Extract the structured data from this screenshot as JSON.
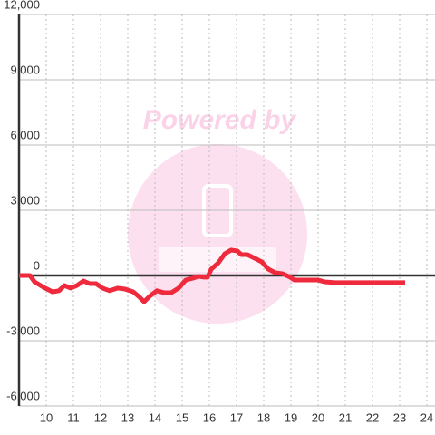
{
  "watermark": "Powered by",
  "chart_data": {
    "type": "line",
    "x": [
      9.0,
      9.4,
      9.57,
      9.9,
      10.23,
      10.47,
      10.67,
      10.9,
      11.13,
      11.37,
      11.6,
      11.83,
      12.07,
      12.33,
      12.63,
      12.9,
      13.2,
      13.4,
      13.6,
      13.8,
      14.07,
      14.33,
      14.6,
      14.87,
      15.13,
      15.4,
      15.6,
      15.8,
      15.93,
      16.07,
      16.33,
      16.57,
      16.8,
      17.03,
      17.17,
      17.4,
      17.67,
      17.93,
      18.17,
      18.43,
      18.7,
      18.97,
      19.13,
      19.4,
      20.0,
      20.23,
      20.63,
      23.2
    ],
    "series": [
      {
        "color": "#ee2a3c",
        "values": [
          0,
          0,
          -290,
          -540,
          -750,
          -700,
          -460,
          -580,
          -460,
          -250,
          -375,
          -375,
          -580,
          -700,
          -580,
          -625,
          -750,
          -960,
          -1210,
          -960,
          -700,
          -790,
          -790,
          -580,
          -210,
          -125,
          -40,
          -80,
          -80,
          290,
          580,
          1000,
          1170,
          1125,
          960,
          960,
          790,
          625,
          290,
          125,
          80,
          -80,
          -210,
          -210,
          -210,
          -290,
          -330,
          -330
        ]
      }
    ],
    "xlim": [
      9,
      24.3
    ],
    "xticks": [
      10,
      11,
      12,
      13,
      14,
      15,
      16,
      17,
      18,
      19,
      20,
      21,
      22,
      23,
      24
    ],
    "ylim": [
      -6000,
      12000
    ],
    "yticks": [
      {
        "value": -6000,
        "label": "-6,000"
      },
      {
        "value": -3000,
        "label": "-3,000"
      },
      0,
      {
        "value": 3000,
        "label": "3,000"
      },
      {
        "value": 6000,
        "label": "6,000"
      },
      {
        "value": 9000,
        "label": "9,000"
      },
      {
        "value": 12000,
        "label": "12,000"
      }
    ],
    "grid": true
  }
}
